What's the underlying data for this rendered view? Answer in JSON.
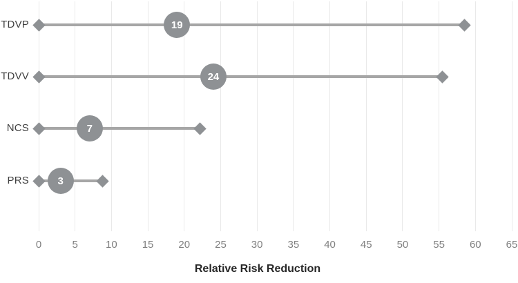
{
  "chart_data": {
    "type": "scatter",
    "subtype": "dumbbell-range",
    "title": "",
    "xlabel": "Relative Risk Reduction",
    "ylabel": "",
    "categories": [
      "TDVP",
      "TDVV",
      "NCS",
      "PRS"
    ],
    "series": [
      {
        "name": "Point estimate (bubble label)",
        "values": [
          19,
          24,
          7,
          3
        ]
      },
      {
        "name": "Range start (diamond)",
        "values": [
          0,
          0,
          0,
          0
        ]
      },
      {
        "name": "Range end (diamond)",
        "values": [
          58.5,
          55.5,
          22.2,
          8.8
        ]
      }
    ],
    "xlim": [
      0,
      65
    ],
    "xticks": [
      0,
      5,
      10,
      15,
      20,
      25,
      30,
      35,
      40,
      45,
      50,
      55,
      60,
      65
    ],
    "grid": "vertical-only",
    "legend": "none",
    "colors": {
      "background": "#ffffff",
      "gridline": "#e9e9e9",
      "range_line": "#a6a6a6",
      "diamond_marker": "#8e9194",
      "bubble_fill": "#8e9194",
      "bubble_text": "#ffffff",
      "category_label": "#3f3f3f",
      "tick_label": "#7f7f7f",
      "axis_title": "#262626"
    }
  }
}
